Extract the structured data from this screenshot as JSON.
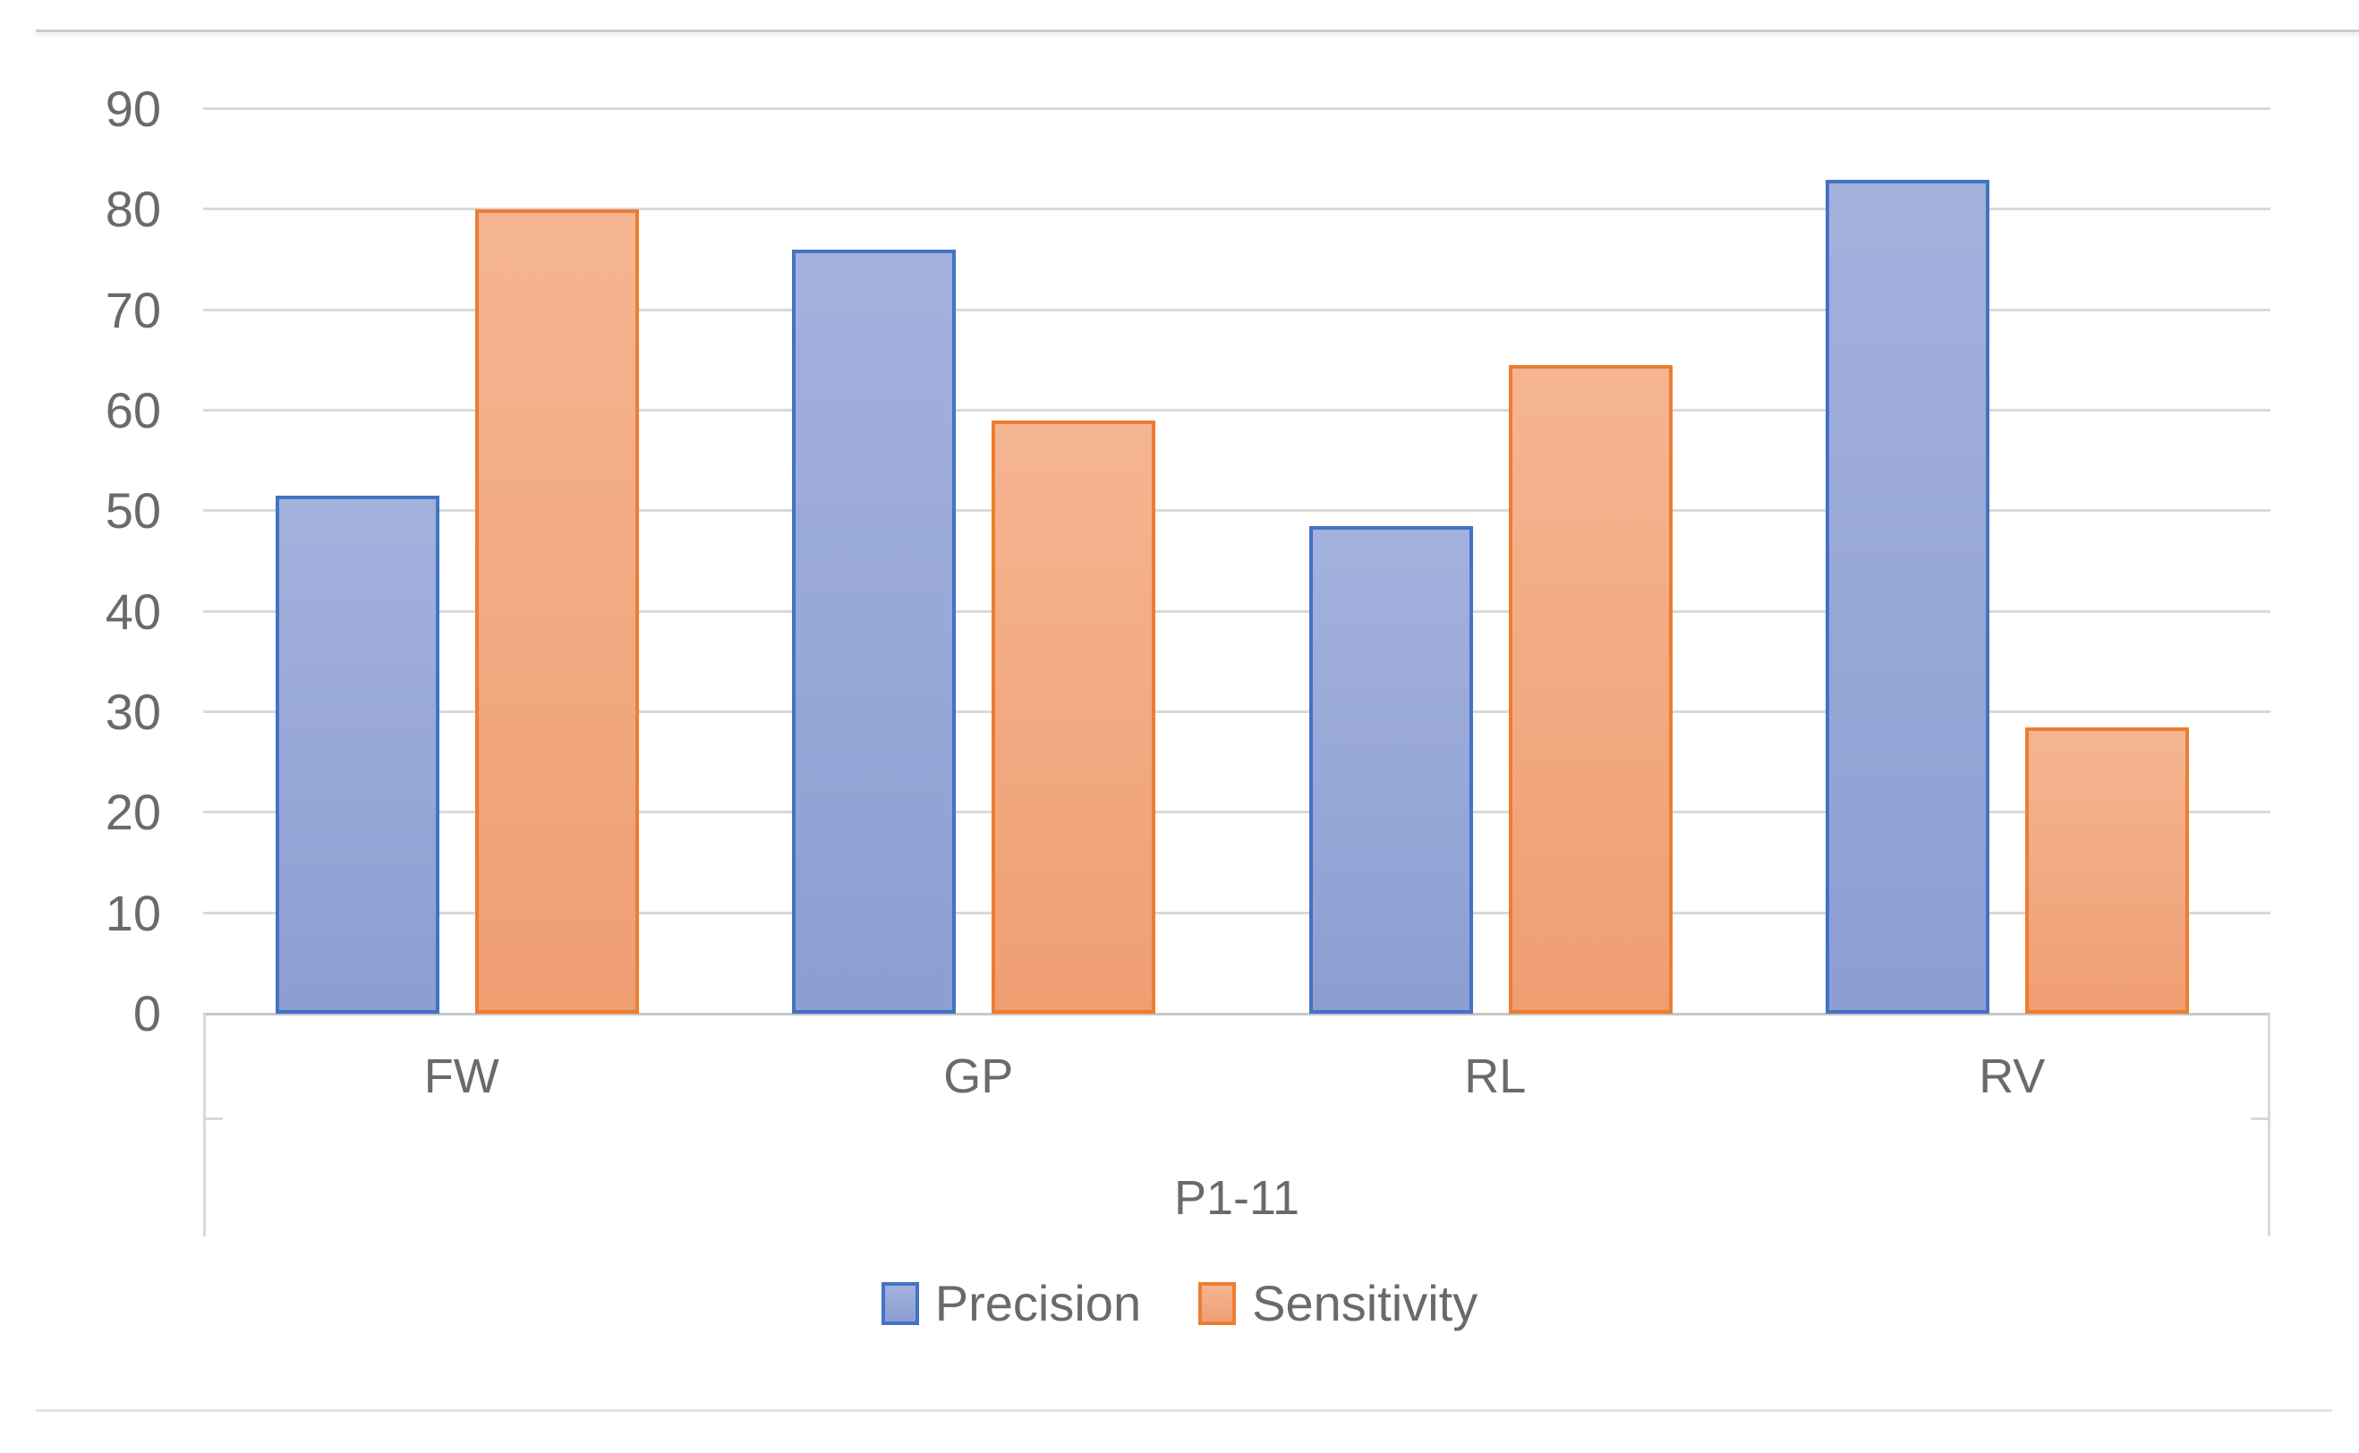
{
  "chart_data": {
    "type": "bar",
    "title": "",
    "categories": [
      "FW",
      "GP",
      "RL",
      "RV"
    ],
    "group_label": "P1-11",
    "series": [
      {
        "name": "Precision",
        "border_color": "#4472C4",
        "fill_top": "#A3B1DD",
        "fill_bottom": "#8C9ED2",
        "values": [
          51.5,
          76,
          48.5,
          83
        ]
      },
      {
        "name": "Sensitivity",
        "border_color": "#ED7D31",
        "fill_top": "#F5B591",
        "fill_bottom": "#EF9E72",
        "values": [
          80,
          59,
          64.5,
          28.5
        ]
      }
    ],
    "y_axis": {
      "min": 0,
      "max": 90,
      "step": 10,
      "ticks": [
        "0",
        "10",
        "20",
        "30",
        "40",
        "50",
        "60",
        "70",
        "80",
        "90"
      ]
    },
    "ylim": [
      0,
      90
    ],
    "grid": true,
    "gridline_color": "#D9D9D9",
    "axis_text_color": "#6A6A6A",
    "legend_position": "bottom",
    "xlabel": "",
    "ylabel": ""
  }
}
